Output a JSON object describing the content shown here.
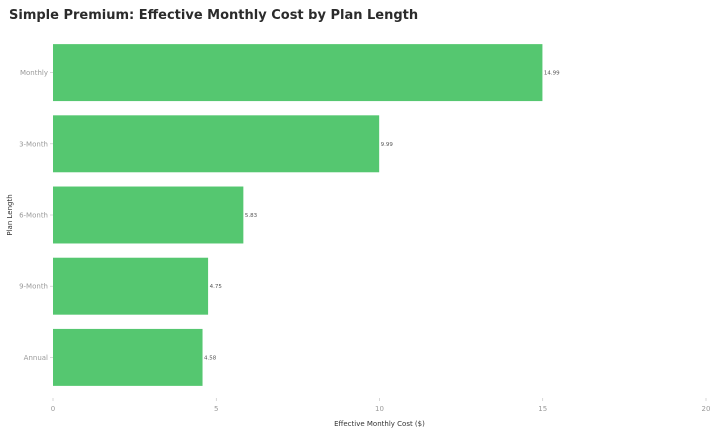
{
  "chart_data": {
    "type": "bar",
    "orientation": "horizontal",
    "title": "Simple Premium: Effective Monthly Cost by Plan Length",
    "xlabel": "Effective Monthly Cost ($)",
    "ylabel": "Plan Length",
    "categories": [
      "Monthly",
      "3-Month",
      "6-Month",
      "9-Month",
      "Annual"
    ],
    "values": [
      14.99,
      9.99,
      5.83,
      4.75,
      4.58
    ],
    "value_labels": [
      "14.99",
      "9.99",
      "5.83",
      "4.75",
      "4.58"
    ],
    "xlim": [
      0,
      20
    ],
    "xticks": [
      0,
      5,
      10,
      15,
      20
    ],
    "xtick_labels": [
      "0",
      "5",
      "10",
      "15",
      "20"
    ],
    "bar_color": "#55c770",
    "grid": false,
    "legend": "none"
  }
}
